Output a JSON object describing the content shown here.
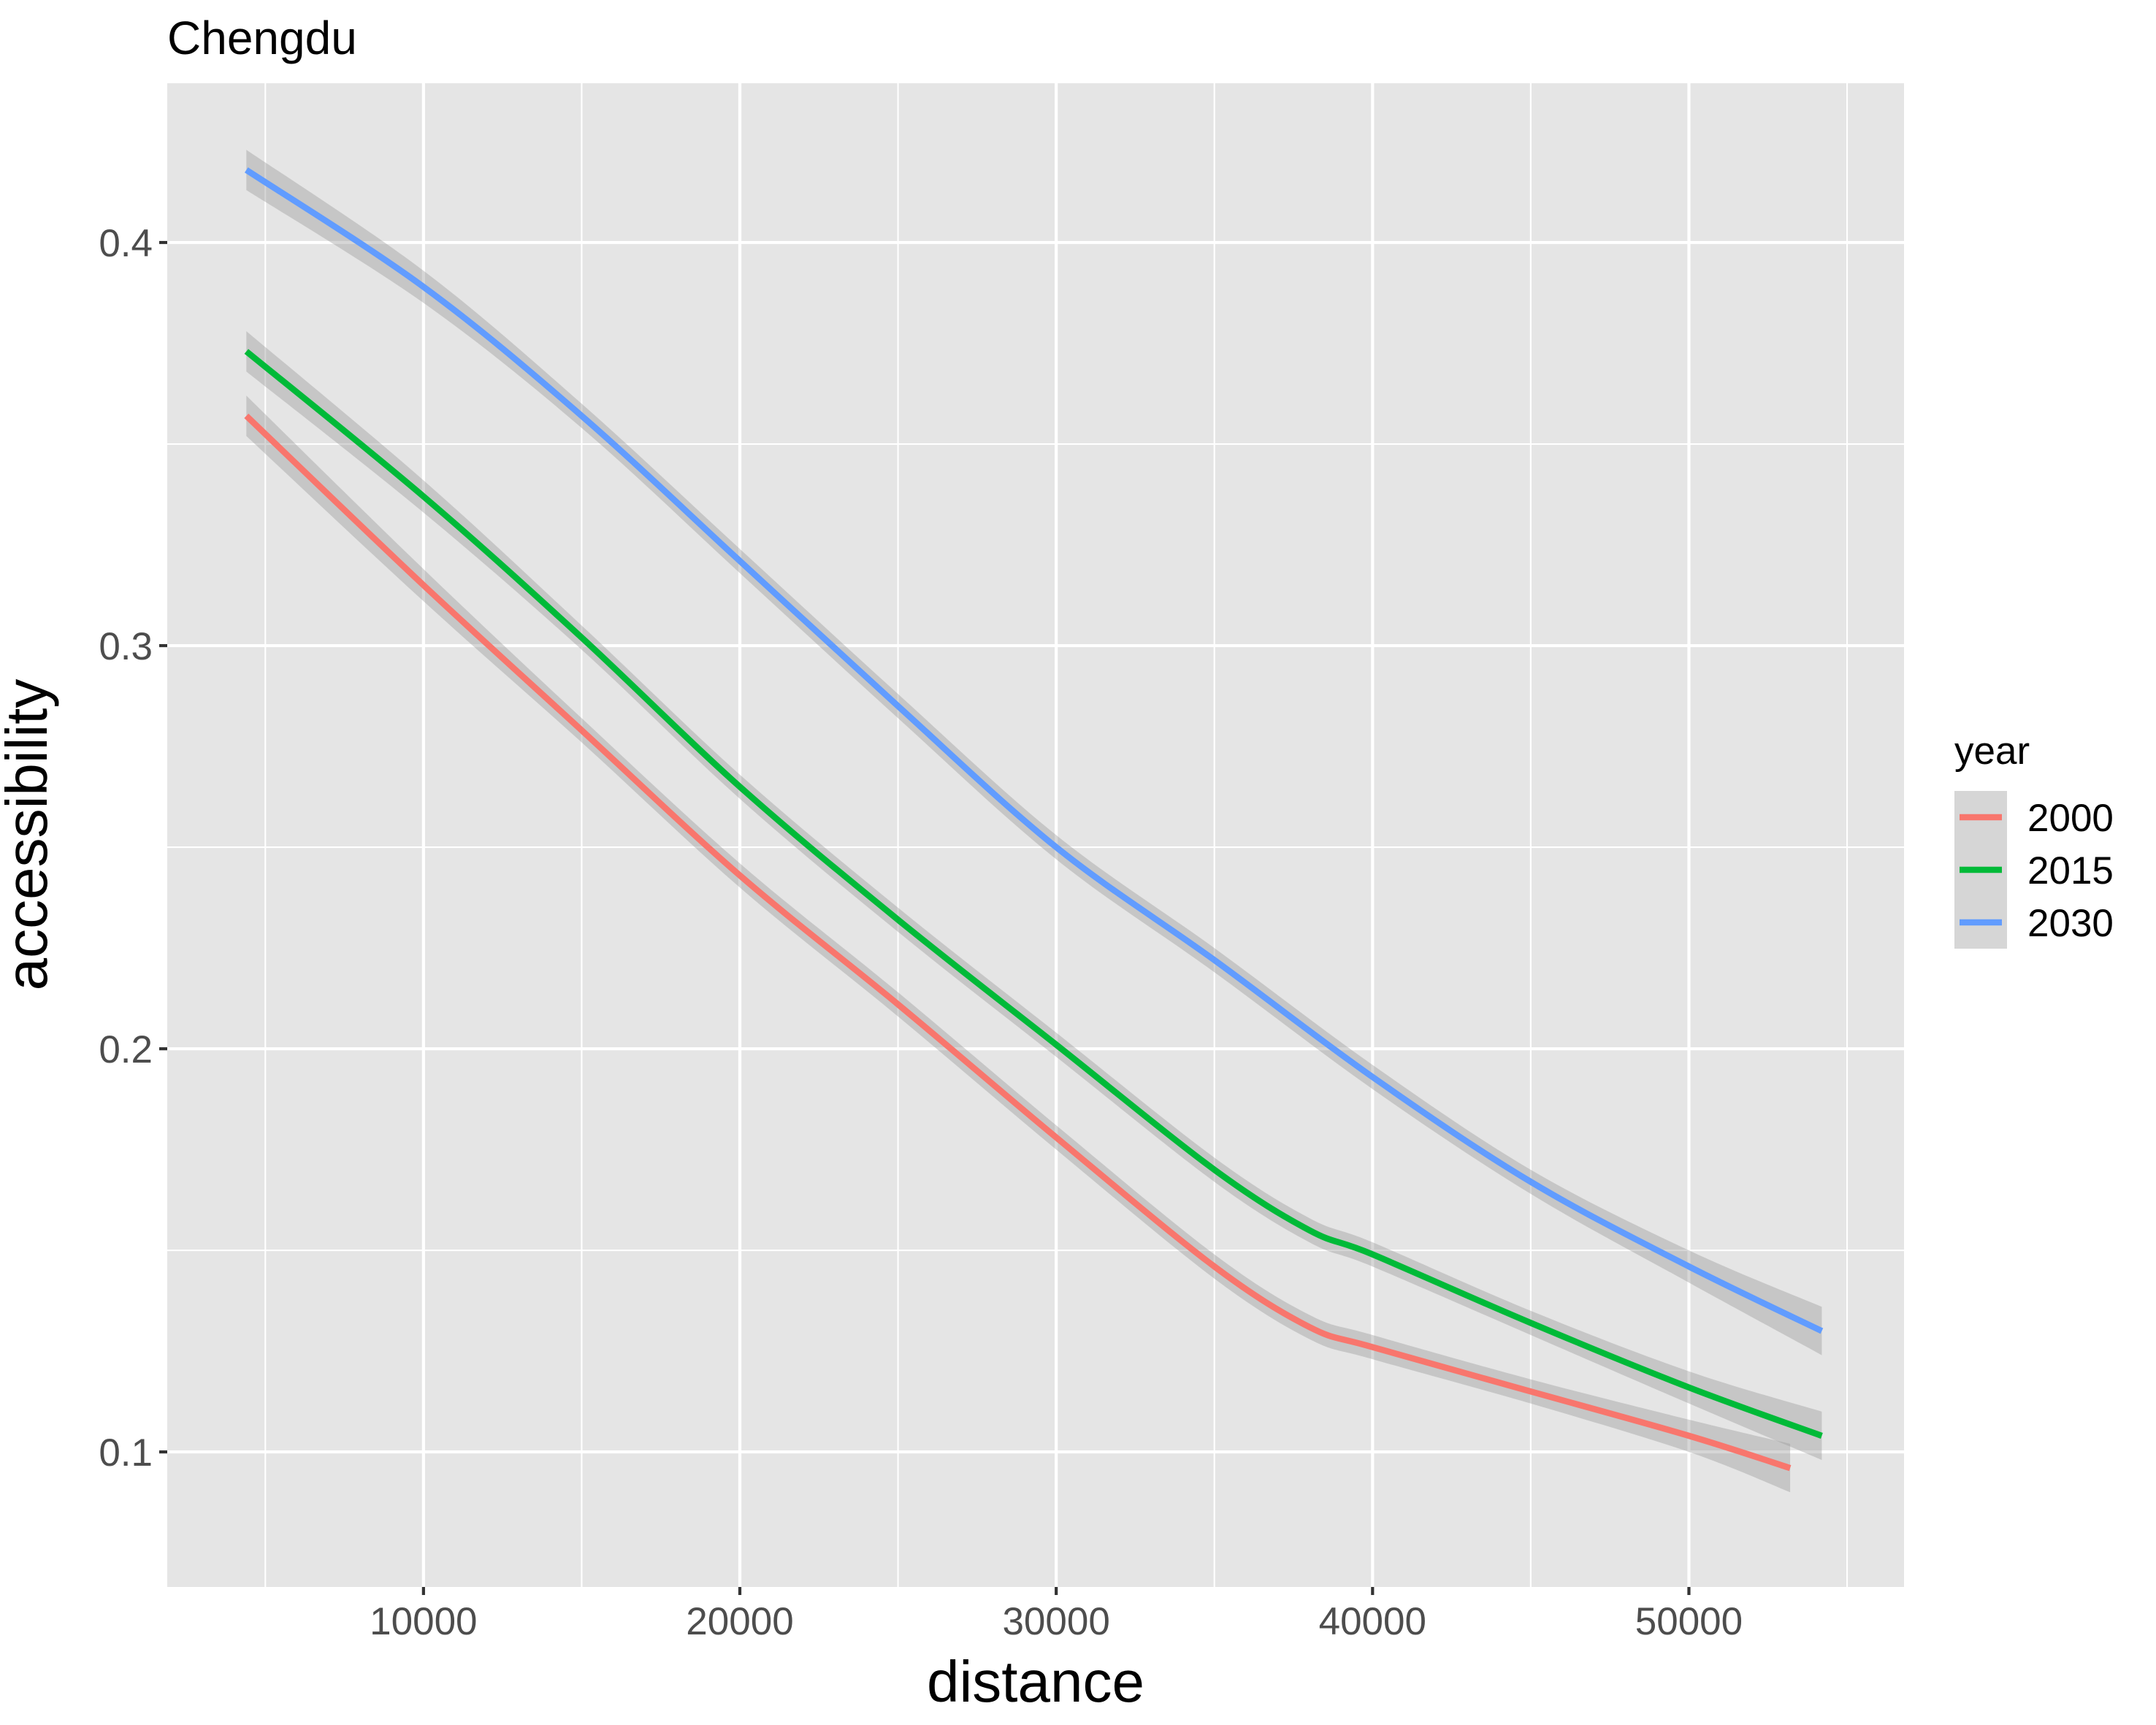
{
  "chart_data": {
    "type": "line",
    "title": "Chengdu",
    "xlabel": "distance",
    "ylabel": "accessibility",
    "xlim": [
      1900,
      56800
    ],
    "ylim": [
      0.0665,
      0.4395
    ],
    "x_major_ticks": [
      10000,
      20000,
      30000,
      40000,
      50000
    ],
    "x_minor_ticks": [
      5000,
      15000,
      25000,
      35000,
      45000,
      55000
    ],
    "y_major_ticks": [
      0.1,
      0.2,
      0.3,
      0.4
    ],
    "y_minor_ticks": [
      0.15,
      0.25,
      0.35
    ],
    "x_tick_labels": [
      "10000",
      "20000",
      "30000",
      "40000",
      "50000"
    ],
    "y_tick_labels": [
      "0.1",
      "0.2",
      "0.3",
      "0.4"
    ],
    "grid": true,
    "confidence_band": true,
    "legend": {
      "title": "year",
      "position": "right"
    },
    "series": [
      {
        "name": "2000",
        "color": "#F8766D",
        "x": [
          4400,
          10000,
          15000,
          20000,
          25000,
          30000,
          35000,
          38000,
          40000,
          45000,
          50000,
          53200
        ],
        "y": [
          0.357,
          0.315,
          0.279,
          0.243,
          0.211,
          0.178,
          0.146,
          0.131,
          0.126,
          0.115,
          0.104,
          0.096
        ],
        "band": [
          0.005,
          0.004,
          0.003,
          0.003,
          0.003,
          0.003,
          0.003,
          0.003,
          0.003,
          0.003,
          0.004,
          0.006
        ]
      },
      {
        "name": "2015",
        "color": "#00BA38",
        "x": [
          4400,
          10000,
          15000,
          20000,
          25000,
          30000,
          35000,
          38000,
          40000,
          45000,
          50000,
          54200
        ],
        "y": [
          0.373,
          0.337,
          0.302,
          0.265,
          0.232,
          0.201,
          0.17,
          0.155,
          0.149,
          0.132,
          0.116,
          0.104
        ],
        "band": [
          0.005,
          0.004,
          0.003,
          0.003,
          0.003,
          0.003,
          0.003,
          0.003,
          0.003,
          0.003,
          0.004,
          0.006
        ]
      },
      {
        "name": "2030",
        "color": "#619CFF",
        "x": [
          4400,
          10000,
          15000,
          20000,
          25000,
          30000,
          35000,
          40000,
          45000,
          50000,
          54200
        ],
        "y": [
          0.418,
          0.389,
          0.357,
          0.321,
          0.285,
          0.25,
          0.222,
          0.193,
          0.167,
          0.146,
          0.13
        ],
        "band": [
          0.005,
          0.004,
          0.003,
          0.003,
          0.003,
          0.003,
          0.003,
          0.003,
          0.003,
          0.004,
          0.006
        ]
      }
    ]
  }
}
